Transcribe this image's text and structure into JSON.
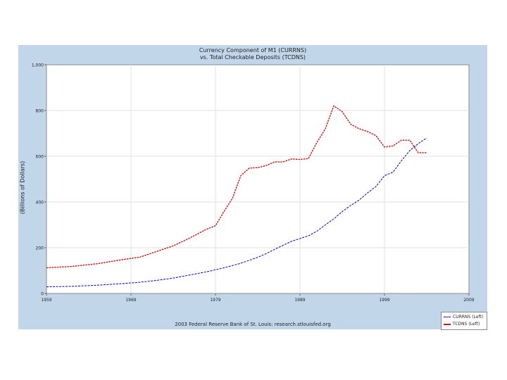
{
  "chart_data": {
    "type": "line",
    "title": "Currency Component of M1 (CURRNS)",
    "subtitle": "vs. Total Checkable Deposits (TCDNS)",
    "ylabel": "(Billions of Dollars)",
    "xlim": [
      1959,
      2005
    ],
    "ylim": [
      0,
      1000
    ],
    "x_ticks": [
      "1959",
      "1969",
      "1979",
      "1989",
      "1999",
      "2009"
    ],
    "y_ticks": [
      "0",
      "200",
      "400",
      "600",
      "800",
      "1,000"
    ],
    "grid": true,
    "legend_position": "bottom-right",
    "footer": "2003 Federal Reserve Bank of St. Louis: research.stlouisfed.org",
    "series": [
      {
        "name": "CURRNS (Left)",
        "color": "#0000b4",
        "style": "dashed",
        "x": [
          1959,
          1962,
          1965,
          1968,
          1970,
          1972,
          1974,
          1976,
          1978,
          1980,
          1982,
          1984,
          1985,
          1986,
          1988,
          1990,
          1991,
          1992,
          1993,
          1994,
          1995,
          1996,
          1997,
          1998,
          1999,
          2000,
          2001,
          2002,
          2003,
          2004
        ],
        "y": [
          29,
          31,
          36,
          43,
          49,
          57,
          67,
          81,
          95,
          112,
          132,
          158,
          174,
          193,
          228,
          252,
          272,
          300,
          326,
          358,
          385,
          408,
          440,
          468,
          515,
          530,
          580,
          625,
          655,
          680
        ]
      },
      {
        "name": "TCDNS (Left)",
        "color": "#c81414",
        "style": "dashed",
        "x": [
          1959,
          1962,
          1965,
          1968,
          1970,
          1972,
          1974,
          1976,
          1978,
          1979,
          1980,
          1981,
          1982,
          1983,
          1984,
          1985,
          1986,
          1987,
          1988,
          1989,
          1990,
          1991,
          1992,
          1993,
          1994,
          1995,
          1996,
          1997,
          1998,
          1999,
          2000,
          2001,
          2002,
          2003,
          2004
        ],
        "y": [
          112,
          118,
          130,
          148,
          158,
          183,
          208,
          243,
          282,
          296,
          358,
          415,
          515,
          548,
          550,
          559,
          575,
          575,
          588,
          586,
          590,
          660,
          720,
          820,
          795,
          740,
          720,
          708,
          690,
          640,
          645,
          670,
          670,
          615,
          615
        ]
      }
    ]
  }
}
